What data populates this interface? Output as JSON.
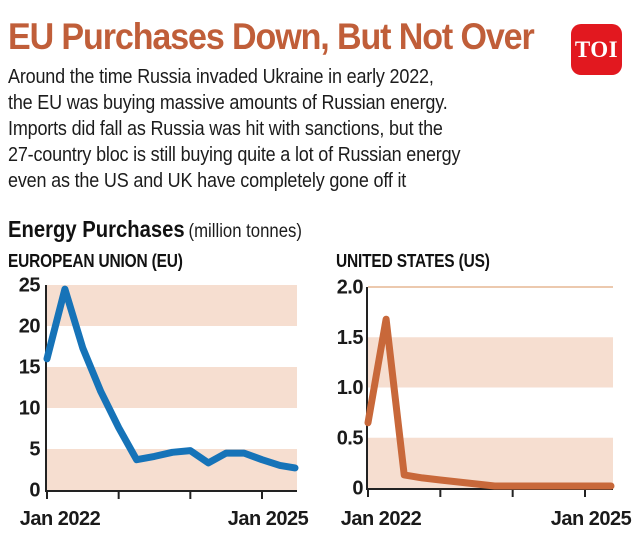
{
  "header": {
    "title": "EU Purchases Down, But Not Over",
    "logo_text": "TOI",
    "intro_lines": [
      "Around the time Russia invaded Ukraine in early 2022,",
      "the EU was buying massive amounts of Russian energy.",
      "Imports did fall as Russia was hit with sanctions, but the",
      "27-country bloc is still buying quite a lot of Russian energy",
      "even as the US and UK have completely gone off it"
    ]
  },
  "section": {
    "heading": "Energy Purchases",
    "unit_label": "(million tonnes)"
  },
  "colors": {
    "title_accent": "#c05e39",
    "logo_bg": "#e2181f",
    "band": "#f6ded0",
    "top_gridline": "#ecc9ae",
    "axis": "#222222",
    "eu_line": "#1673b8",
    "us_line": "#c8683a"
  },
  "chart_data": [
    {
      "type": "line",
      "title": "EUROPEAN UNION (EU)",
      "x_unit": "months since Jan 2022",
      "x_months": [
        0,
        3,
        6,
        9,
        12,
        15,
        18,
        21,
        24,
        27,
        30,
        33,
        36,
        39,
        42
      ],
      "values": [
        16,
        24.5,
        17.3,
        12,
        7.6,
        3.7,
        4.1,
        4.6,
        4.8,
        3.3,
        4.5,
        4.5,
        3.7,
        3.0,
        2.7
      ],
      "ylim": [
        0,
        25
      ],
      "y_tick_values": [
        25,
        20,
        15,
        10,
        5,
        0
      ],
      "y_tick_labels": [
        "25",
        "20",
        "15",
        "10",
        "5",
        "0"
      ],
      "x_tick_months": [
        0,
        12,
        24,
        36
      ],
      "x_tick_labels": [
        "Jan 2022",
        "",
        "",
        "Jan 2025"
      ],
      "shaded_bands": [
        [
          20,
          25
        ],
        [
          10,
          15
        ],
        [
          0,
          5
        ]
      ],
      "line_color": "#1673b8",
      "grid": "alternating-bands",
      "legend": "none"
    },
    {
      "type": "line",
      "title": "UNITED STATES (US)",
      "x_unit": "months since Jan 2022",
      "x_months": [
        0,
        3,
        6,
        9,
        12,
        15,
        18,
        21,
        24,
        27,
        30,
        33,
        36,
        39,
        42
      ],
      "values": [
        0.65,
        1.68,
        0.13,
        0.1,
        0.08,
        0.06,
        0.04,
        0.02,
        0.02,
        0.02,
        0.02,
        0.02,
        0.02,
        0.02,
        0.02
      ],
      "ylim": [
        0,
        2.0
      ],
      "y_tick_values": [
        2.0,
        1.5,
        1.0,
        0.5,
        0
      ],
      "y_tick_labels": [
        "2.0",
        "1.5",
        "1.0",
        "0.5",
        "0"
      ],
      "x_tick_months": [
        0,
        12,
        24,
        36
      ],
      "x_tick_labels": [
        "Jan 2022",
        "",
        "",
        "Jan 2025"
      ],
      "shaded_bands": [
        [
          1.0,
          1.5
        ],
        [
          0,
          0.5
        ]
      ],
      "top_gridline": 2.0,
      "line_color": "#c8683a",
      "grid": "alternating-bands",
      "legend": "none"
    }
  ]
}
